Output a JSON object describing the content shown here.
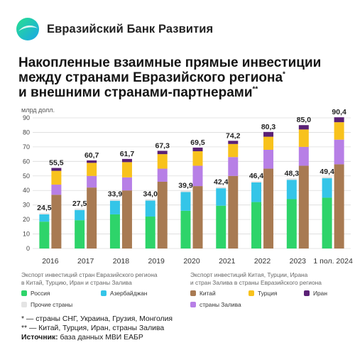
{
  "header": {
    "brand": "Евразийский Банк Развития"
  },
  "title": {
    "line1": "Накопленные взаимные прямые инвестиции",
    "line2": "между странами Евразийского региона",
    "line2_mark": "*",
    "line3": "и внешними странами-партнерами",
    "line3_mark": "**"
  },
  "colors": {
    "russia": "#2ed46a",
    "azerbaijan": "#34c5e8",
    "other": "#e4e4e4",
    "china": "#a87a52",
    "turkey": "#f8c21c",
    "iran": "#5b2176",
    "gulf": "#b77fe6",
    "grid": "#dcdcdc"
  },
  "chart_data": {
    "type": "bar",
    "ylabel": "млрд долл.",
    "ylim": [
      0,
      90
    ],
    "yticks": [
      0,
      10,
      20,
      30,
      40,
      50,
      60,
      70,
      80,
      90
    ],
    "grid": true,
    "categories": [
      "2016",
      "2017",
      "2018",
      "2019",
      "2020",
      "2021",
      "2022",
      "2023",
      "1 пол. 2024"
    ],
    "groups": [
      {
        "name": "Экспорт инвестиций стран Евразийского региона в Китай, Турцию, Иран и страны Залива",
        "totals": [
          24.5,
          27.5,
          33.9,
          34.0,
          39.9,
          42.4,
          46.4,
          48.3,
          49.4
        ],
        "total_labels": [
          "24,5",
          "27,5",
          "33,9",
          "34,0",
          "39,9",
          "42,4",
          "46,4",
          "48,3",
          "49,4"
        ],
        "series": [
          {
            "key": "russia",
            "name": "Россия",
            "values": [
              18.5,
              19.5,
              23.5,
              22,
              26,
              29.5,
              32,
              34,
              35
            ]
          },
          {
            "key": "azerbaijan",
            "name": "Азербайджан",
            "values": [
              5,
              7,
              9.4,
              11,
              12.9,
              12,
              13.5,
              13.3,
              13.4
            ]
          },
          {
            "key": "other",
            "name": "Прочие страны",
            "values": [
              1.0,
              1.0,
              1.0,
              1.0,
              1.0,
              0.9,
              0.9,
              1.0,
              1.0
            ]
          }
        ]
      },
      {
        "name": "Экспорт инвестиций Китая, Турции, Ирана и стран Залива в страны Евразийского региона",
        "totals": [
          55.5,
          60.7,
          61.7,
          67.3,
          69.5,
          74.2,
          80.3,
          85.0,
          90.4
        ],
        "total_labels": [
          "55,5",
          "60,7",
          "61,7",
          "67,3",
          "69,5",
          "74,2",
          "80,3",
          "85,0",
          "90,4"
        ],
        "series": [
          {
            "key": "china",
            "name": "Китай",
            "values": [
              37,
              42,
              40,
              46,
              43,
              50,
              55,
              57,
              58
            ]
          },
          {
            "key": "gulf",
            "name": "страны Залива",
            "values": [
              7,
              8,
              9,
              9,
              14,
              13,
              13,
              13,
              17
            ]
          },
          {
            "key": "turkey",
            "name": "Турция",
            "values": [
              9.5,
              9,
              10.5,
              10,
              10,
              9,
              9,
              12,
              12
            ]
          },
          {
            "key": "iran",
            "name": "Иран",
            "values": [
              2.0,
              1.7,
              2.2,
              2.3,
              2.5,
              2.2,
              3.3,
              3.0,
              3.4
            ]
          }
        ]
      }
    ]
  },
  "legend": {
    "left_title_line1": "Экспорт инвестиций стран Евразийского региона",
    "left_title_line2": "в Китай, Турцию, Иран и страны Залива",
    "right_title_line1": "Экспорт инвестиций Китая, Турции, Ирана",
    "right_title_line2": "и стран Залива в страны Евразийского региона",
    "russia": "Россия",
    "azerbaijan": "Азербайджан",
    "other": "Прочие страны",
    "china": "Китай",
    "turkey": "Турция",
    "iran": "Иран",
    "gulf": "страны Залива"
  },
  "footnotes": {
    "note1": "* — страны СНГ, Украина, Грузия, Монголия",
    "note2": "** — Китай, Турция, Иран, страны Залива",
    "source_label": "Источник:",
    "source_text": " база данных МВИ ЕАБР"
  }
}
